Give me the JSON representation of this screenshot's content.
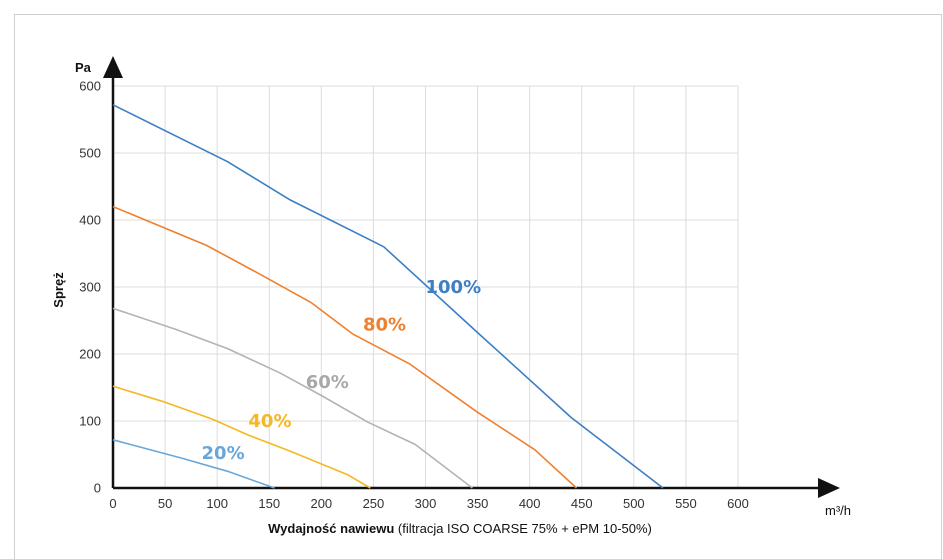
{
  "chart_data": {
    "type": "line",
    "xlabel_bold": "Wydajność nawiewu",
    "xlabel_rest": " (filtracja ISO COARSE 75% + ePM 10-50%)",
    "x_unit": "m³/h",
    "ylabel": "Spręż",
    "y_unit": "Pa",
    "xlim": [
      0,
      600
    ],
    "ylim": [
      0,
      600
    ],
    "xticks": [
      "0",
      "50",
      "100",
      "150",
      "200",
      "250",
      "300",
      "350",
      "400",
      "450",
      "500",
      "550",
      "600"
    ],
    "yticks": [
      "0",
      "100",
      "200",
      "300",
      "400",
      "500",
      "600"
    ],
    "grid": true,
    "series": [
      {
        "name": "100%",
        "color": "#3d7fc4",
        "x": [
          0,
          110,
          170,
          260,
          350,
          440,
          528
        ],
        "y": [
          572,
          487,
          430,
          360,
          232,
          105,
          0
        ]
      },
      {
        "name": "80%",
        "color": "#f07f2e",
        "x": [
          0,
          90,
          140,
          190,
          230,
          285,
          350,
          405,
          445
        ],
        "y": [
          420,
          362,
          320,
          277,
          230,
          185,
          113,
          57,
          0
        ]
      },
      {
        "name": "60%",
        "color": "#b3b3b3",
        "x": [
          0,
          60,
          110,
          160,
          200,
          245,
          290,
          345
        ],
        "y": [
          268,
          237,
          208,
          172,
          138,
          98,
          65,
          0
        ]
      },
      {
        "name": "40%",
        "color": "#f4b824",
        "x": [
          0,
          50,
          95,
          130,
          170,
          225,
          247
        ],
        "y": [
          152,
          128,
          103,
          79,
          55,
          20,
          0
        ]
      },
      {
        "name": "20%",
        "color": "#6aa7d9",
        "x": [
          0,
          65,
          110,
          155
        ],
        "y": [
          72,
          45,
          25,
          0
        ]
      }
    ],
    "labels": [
      {
        "text": "100%",
        "color": "#3d7fc4",
        "x": 300,
        "y": 300
      },
      {
        "text": "80%",
        "color": "#f07f2e",
        "x": 240,
        "y": 244
      },
      {
        "text": "60%",
        "color": "#a8a8a8",
        "x": 185,
        "y": 158
      },
      {
        "text": "40%",
        "color": "#f4b824",
        "x": 130,
        "y": 100
      },
      {
        "text": "20%",
        "color": "#6aa7d9",
        "x": 85,
        "y": 52
      }
    ]
  }
}
